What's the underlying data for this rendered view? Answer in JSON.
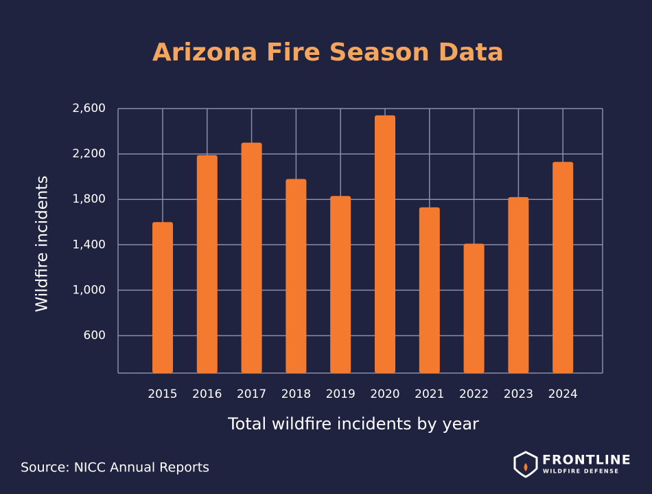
{
  "chart_data": {
    "type": "bar",
    "title": "Arizona Fire Season Data",
    "y_label": "Wildfire incidents",
    "x_label": "Total wildfire incidents by year",
    "categories": [
      "2015",
      "2016",
      "2017",
      "2018",
      "2019",
      "2020",
      "2021",
      "2022",
      "2023",
      "2024"
    ],
    "values": [
      1600,
      2190,
      2300,
      1980,
      1830,
      2540,
      1730,
      1410,
      1820,
      2130
    ],
    "color": "#f47a30",
    "ylim": [
      270,
      2600
    ],
    "yticks": [
      {
        "value": 600,
        "label": "600"
      },
      {
        "value": 1000,
        "label": "1,000"
      },
      {
        "value": 1400,
        "label": "1,400"
      },
      {
        "value": 1800,
        "label": "1,800"
      },
      {
        "value": 2200,
        "label": "2,200"
      },
      {
        "value": 2600,
        "label": "2,600"
      }
    ],
    "grid": true,
    "source": "Source: NICC Annual Reports",
    "logo_name": "FRONTLINE",
    "logo_tagline": "WILDFIRE DEFENSE"
  }
}
